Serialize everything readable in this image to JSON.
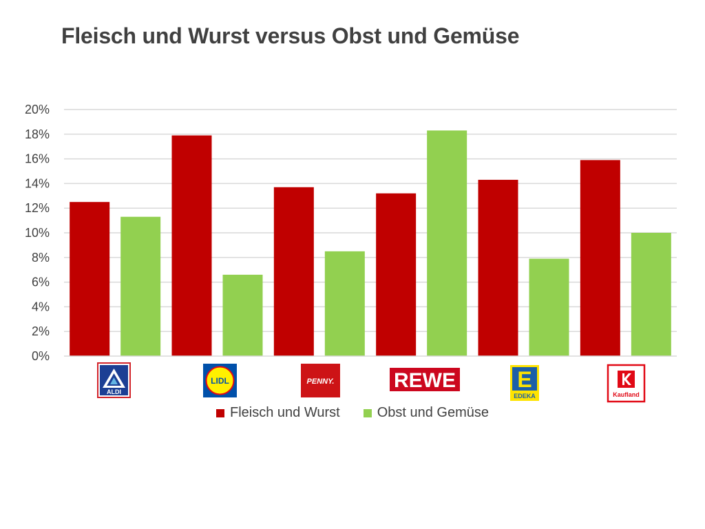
{
  "chart_data": {
    "type": "bar",
    "title": "Fleisch und Wurst versus Obst und Gemüse",
    "categories": [
      "ALDI",
      "LIDL",
      "PENNY",
      "REWE",
      "EDEKA",
      "Kaufland"
    ],
    "series": [
      {
        "name": "Fleisch und Wurst",
        "color": "#c00000",
        "values": [
          12.5,
          17.9,
          13.7,
          13.2,
          14.3,
          15.9
        ]
      },
      {
        "name": "Obst und Gemüse",
        "color": "#92d050",
        "values": [
          11.3,
          6.6,
          8.5,
          18.3,
          7.9,
          10.0
        ]
      }
    ],
    "ylim": [
      0,
      20
    ],
    "yticks": [
      0,
      2,
      4,
      6,
      8,
      10,
      12,
      14,
      16,
      18,
      20
    ],
    "ytick_labels": [
      "0%",
      "2%",
      "4%",
      "6%",
      "8%",
      "10%",
      "12%",
      "14%",
      "16%",
      "18%",
      "20%"
    ],
    "xlabel": "",
    "ylabel": "",
    "grid": true,
    "legend_position": "bottom"
  },
  "logos": {
    "aldi": "ALDI",
    "lidl": "LIDL",
    "penny": "PENNY.",
    "rewe": "REWE",
    "edeka_letter": "E",
    "edeka": "EDEKA",
    "kaufland": "Kaufland"
  }
}
